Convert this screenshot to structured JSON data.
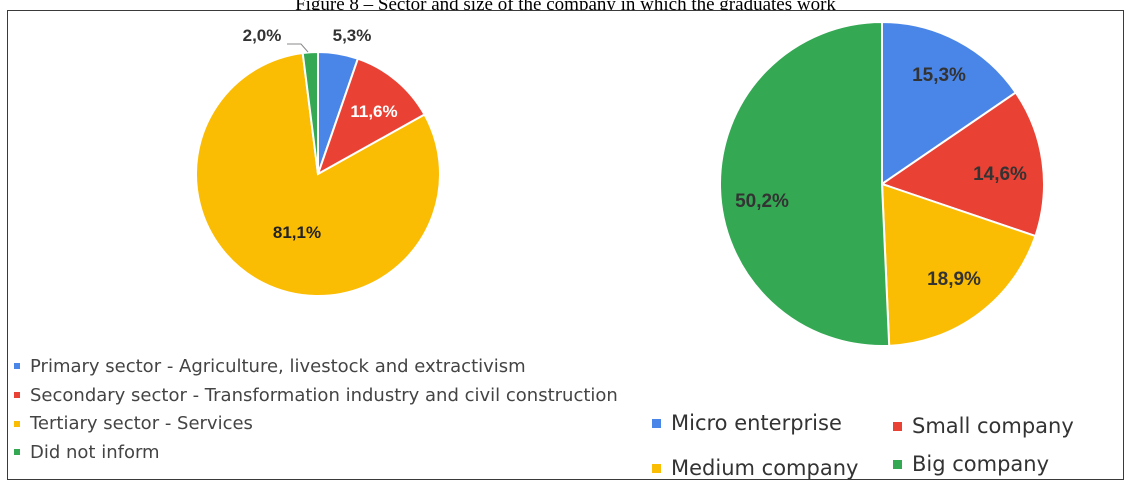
{
  "figure": {
    "caption": "Figure 8 – Sector and size of the company in which the graduates work"
  },
  "chart_data": [
    {
      "type": "pie",
      "categories": [
        "Primary sector - Agriculture, livestock and extractivism",
        "Secondary sector - Transformation industry and civil construction",
        "Tertiary sector - Services",
        "Did not inform"
      ],
      "values": [
        5.3,
        11.6,
        81.1,
        2.0
      ],
      "data_labels": [
        "5,3%",
        "11,6%",
        "81,1%",
        "2,0%"
      ],
      "colors": [
        "#4a86e8",
        "#e94235",
        "#fbbc04",
        "#34a853"
      ],
      "legend_position": "bottom-left"
    },
    {
      "type": "pie",
      "categories": [
        "Micro enterprise",
        "Small company",
        "Medium company",
        "Big company"
      ],
      "values": [
        15.3,
        14.6,
        18.9,
        50.2
      ],
      "data_labels": [
        "15,3%",
        "14,6%",
        "18,9%",
        "50,2%"
      ],
      "colors": [
        "#4a86e8",
        "#e94235",
        "#fbbc04",
        "#34a853"
      ],
      "legend_position": "bottom"
    }
  ]
}
